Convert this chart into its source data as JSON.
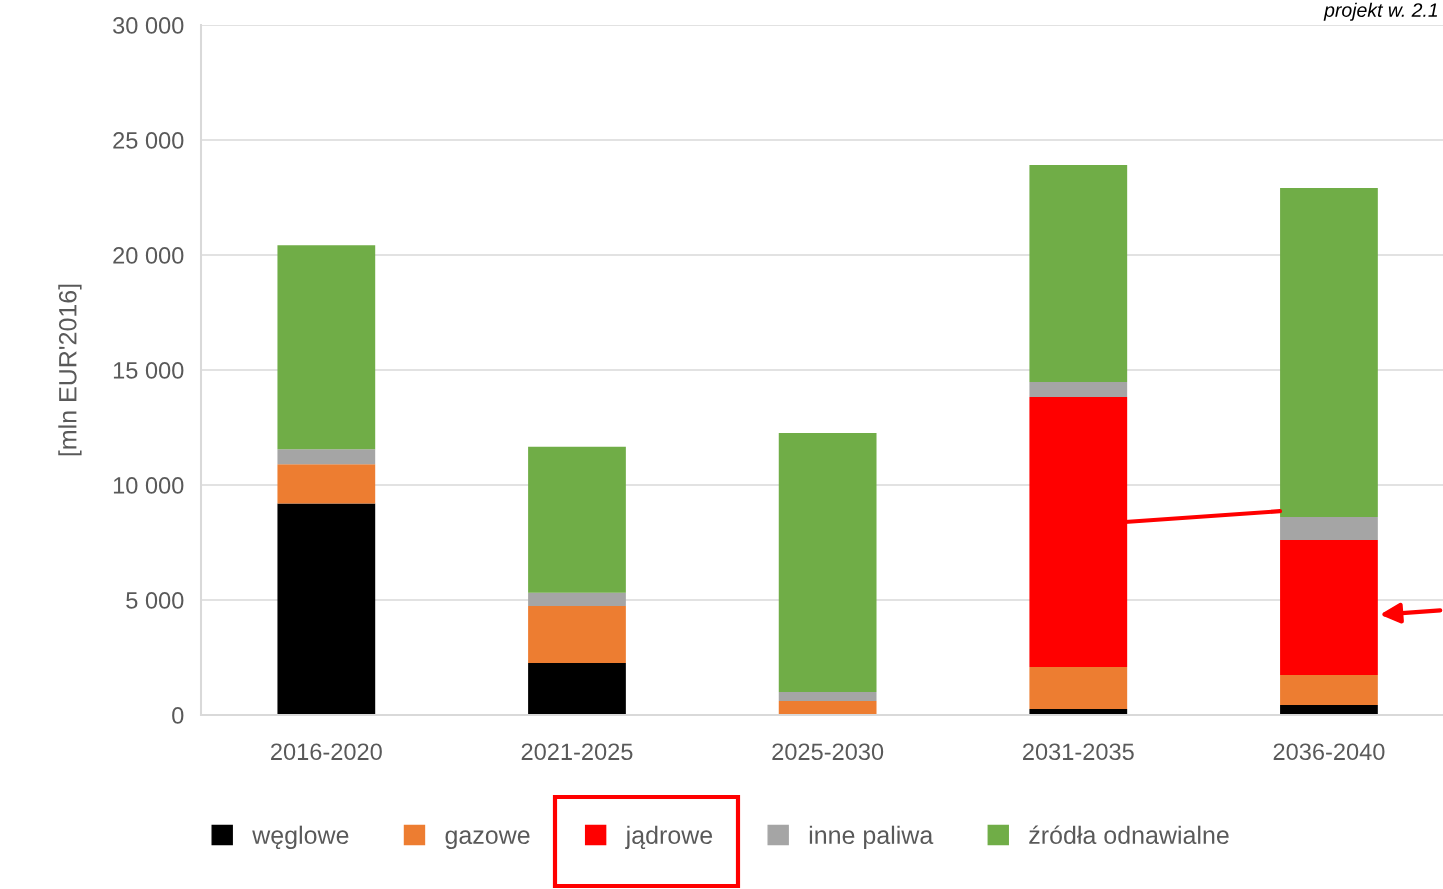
{
  "chart_data": {
    "type": "bar",
    "stacked": true,
    "ylabel": "[mln EUR'2016]",
    "categories": [
      "2016-2020",
      "2021-2025",
      "2025-2030",
      "2031-2035",
      "2036-2040"
    ],
    "series": [
      {
        "name": "węglowe",
        "color": "#000000",
        "values": [
          9200,
          2260,
          0,
          260,
          430
        ]
      },
      {
        "name": "gazowe",
        "color": "#ed7d31",
        "values": [
          1700,
          2480,
          610,
          1830,
          1310
        ]
      },
      {
        "name": "jądrowe",
        "color": "#ff0000",
        "values": [
          0,
          0,
          0,
          11740,
          5870
        ]
      },
      {
        "name": "inne paliwa",
        "color": "#a5a5a5",
        "values": [
          650,
          570,
          390,
          650,
          1000
        ]
      },
      {
        "name": "źródła odnawialne",
        "color": "#70ad47",
        "values": [
          8870,
          6350,
          11260,
          9430,
          14300
        ]
      }
    ],
    "ylim": [
      0,
      30000
    ],
    "yticks": [
      {
        "value": 0,
        "label": "0"
      },
      {
        "value": 5000,
        "label": "5 000"
      },
      {
        "value": 10000,
        "label": "10 000"
      },
      {
        "value": 15000,
        "label": "15 000"
      },
      {
        "value": 20000,
        "label": "20 000"
      },
      {
        "value": 25000,
        "label": "25 000"
      },
      {
        "value": 30000,
        "label": "30 000"
      }
    ],
    "grid": "y",
    "legend": "bottom",
    "annotations": [
      "projekt w. 2.1"
    ]
  }
}
